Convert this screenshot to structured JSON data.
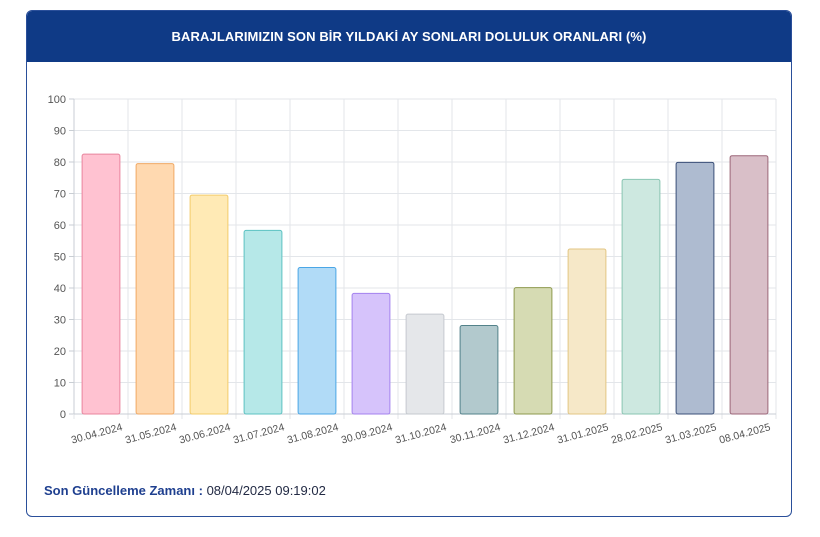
{
  "header": {
    "title": "BARAJLARIMIZIN SON BİR YILDAKİ AY SONLARI DOLULUK ORANLARI (%)"
  },
  "footer": {
    "label": "Son Güncelleme Zamanı :",
    "value": "08/04/2025 09:19:02"
  },
  "chart_data": {
    "type": "bar",
    "title": "BARAJLARIMIZIN SON BİR YILDAKİ AY SONLARI DOLULUK ORANLARI (%)",
    "xlabel": "",
    "ylabel": "",
    "ylim": [
      0,
      100
    ],
    "yticks": [
      0,
      10,
      20,
      30,
      40,
      50,
      60,
      70,
      80,
      90,
      100
    ],
    "grid": true,
    "categories": [
      "30.04.2024",
      "31.05.2024",
      "30.06.2024",
      "31.07.2024",
      "31.08.2024",
      "30.09.2024",
      "31.10.2024",
      "30.11.2024",
      "31.12.2024",
      "31.01.2025",
      "28.02.2025",
      "31.03.2025",
      "08.04.2025"
    ],
    "values": [
      82.5,
      79.5,
      69.5,
      58.3,
      46.5,
      38.3,
      31.7,
      28.1,
      40.1,
      52.4,
      74.5,
      79.9,
      82.0
    ],
    "colors": [
      {
        "fill": "#ffc2d1",
        "stroke": "#e8849d"
      },
      {
        "fill": "#ffd9b0",
        "stroke": "#f0a965"
      },
      {
        "fill": "#ffeab5",
        "stroke": "#f3cc6a"
      },
      {
        "fill": "#b6e8e8",
        "stroke": "#5cc2c2"
      },
      {
        "fill": "#b1dbf7",
        "stroke": "#4aa6e6"
      },
      {
        "fill": "#d6c3fb",
        "stroke": "#a482ef"
      },
      {
        "fill": "#e5e7ea",
        "stroke": "#c5c9cf"
      },
      {
        "fill": "#b2c9cd",
        "stroke": "#53828a"
      },
      {
        "fill": "#d6dbb3",
        "stroke": "#8e9a4e"
      },
      {
        "fill": "#f6e8c8",
        "stroke": "#e3c683"
      },
      {
        "fill": "#cde8e0",
        "stroke": "#89c5b2"
      },
      {
        "fill": "#aebbd0",
        "stroke": "#3b4f78"
      },
      {
        "fill": "#d9bfc8",
        "stroke": "#9c6678"
      }
    ]
  }
}
